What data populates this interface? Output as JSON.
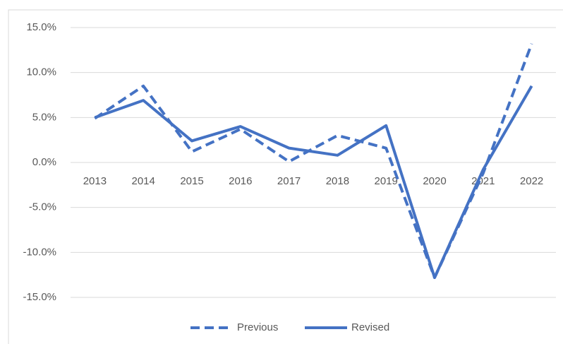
{
  "chart_data": {
    "type": "line",
    "categories": [
      "2013",
      "2014",
      "2015",
      "2016",
      "2017",
      "2018",
      "2019",
      "2020",
      "2021",
      "2022"
    ],
    "series": [
      {
        "name": "Previous",
        "color": "#4472c4",
        "dash": true,
        "values": [
          4.9,
          8.5,
          1.2,
          3.7,
          0.1,
          3.0,
          1.6,
          -12.8,
          -1.2,
          13.2
        ]
      },
      {
        "name": "Revised",
        "color": "#4472c4",
        "dash": false,
        "values": [
          5.0,
          6.9,
          2.4,
          4.0,
          1.6,
          0.8,
          4.1,
          -12.8,
          -0.8,
          8.5
        ]
      }
    ],
    "ylim": [
      -15,
      15
    ],
    "yticks": [
      {
        "value": -15,
        "label": "-15.0%"
      },
      {
        "value": -10,
        "label": "-10.0%"
      },
      {
        "value": -5,
        "label": "-5.0%"
      },
      {
        "value": 0,
        "label": "0.0%"
      },
      {
        "value": 5,
        "label": "5.0%"
      },
      {
        "value": 10,
        "label": "10.0%"
      },
      {
        "value": 15,
        "label": "15.0%"
      }
    ],
    "grid": true,
    "legend": "bottom"
  }
}
